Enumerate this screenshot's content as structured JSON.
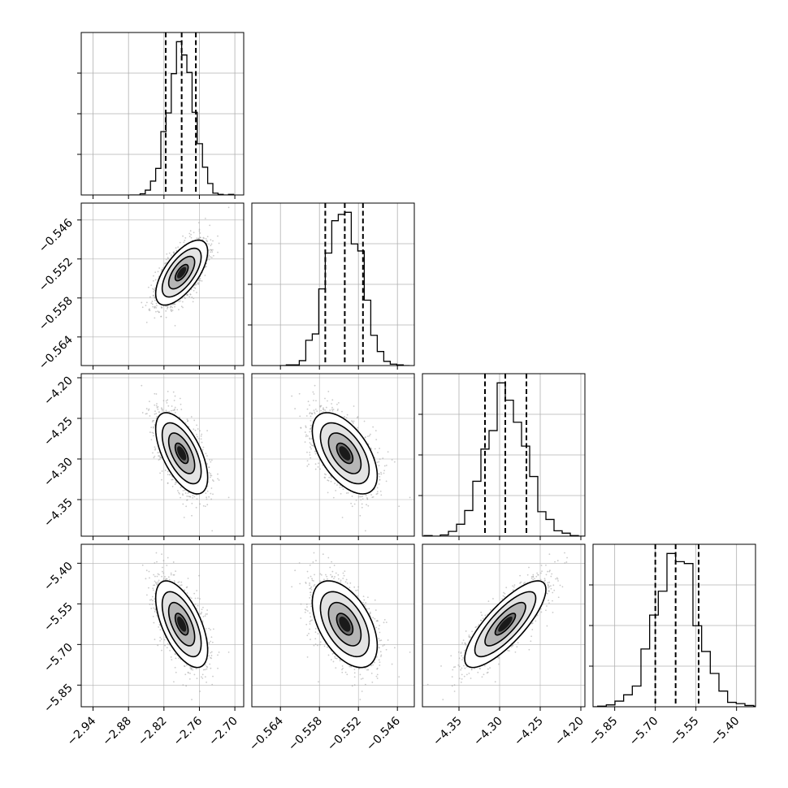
{
  "chart_data": {
    "type": "corner",
    "grid": true,
    "legend": "none",
    "parameters": [
      {
        "xlim": [
          -2.96,
          -2.685
        ],
        "ticks": [
          -2.94,
          -2.88,
          -2.82,
          -2.76,
          -2.7
        ],
        "tick_labels": [
          "−2.94",
          "−2.88",
          "−2.82",
          "−2.76",
          "−2.70"
        ],
        "quantiles": [
          -2.817,
          -2.79,
          -2.766
        ],
        "mean": -2.79,
        "sd": 0.022
      },
      {
        "xlim": [
          -0.5684,
          -0.5434
        ],
        "ticks": [
          -0.564,
          -0.558,
          -0.552,
          -0.546
        ],
        "tick_labels": [
          "−0.564",
          "−0.558",
          "−0.552",
          "−0.546"
        ],
        "quantiles": [
          -0.5571,
          -0.5541,
          -0.5513
        ],
        "mean": -0.5541,
        "sd": 0.0025
      },
      {
        "xlim": [
          -4.395,
          -4.195
        ],
        "ticks": [
          -4.35,
          -4.3,
          -4.25,
          -4.2
        ],
        "tick_labels": [
          "−4.35",
          "−4.30",
          "−4.25",
          "−4.20"
        ],
        "quantiles": [
          -4.318,
          -4.293,
          -4.267
        ],
        "mean": -4.293,
        "sd": 0.025
      },
      {
        "xlim": [
          -5.93,
          -5.33
        ],
        "ticks": [
          -5.85,
          -5.7,
          -5.55,
          -5.4
        ],
        "tick_labels": [
          "−5.85",
          "−5.70",
          "−5.55",
          "−5.40"
        ],
        "quantiles": [
          -5.7,
          -5.625,
          -5.54
        ],
        "mean": -5.625,
        "sd": 0.08
      }
    ],
    "correlations": [
      [
        1,
        0.65,
        -0.6,
        -0.6
      ],
      [
        0.65,
        1,
        -0.55,
        -0.5
      ],
      [
        -0.6,
        -0.55,
        1,
        0.8
      ],
      [
        -0.6,
        -0.5,
        0.8,
        1
      ]
    ],
    "histogram_bins": 20,
    "contour_levels": [
      0.5,
      1.0,
      1.5,
      2.0
    ],
    "colors": {
      "ink": "#000000",
      "grid": "#b0b0b0",
      "points": "#9e9e9e"
    }
  }
}
